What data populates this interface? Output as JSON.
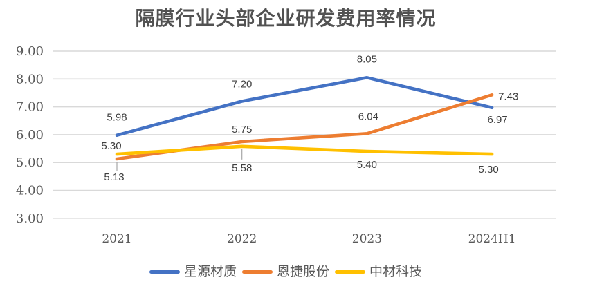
{
  "chart_data": {
    "type": "line",
    "title": "隔膜行业头部企业研发费用率情况",
    "categories": [
      "2021",
      "2022",
      "2023",
      "2024H1"
    ],
    "series": [
      {
        "name": "星源材质",
        "color": "#4472C4",
        "values": [
          5.98,
          7.2,
          8.05,
          6.97
        ],
        "labels": [
          "5.98",
          "7.20",
          "8.05",
          "6.97"
        ]
      },
      {
        "name": "恩捷股份",
        "color": "#ED7D31",
        "values": [
          5.13,
          5.75,
          6.04,
          7.43
        ],
        "labels": [
          "5.13",
          "5.75",
          "6.04",
          "7.43"
        ]
      },
      {
        "name": "中材科技",
        "color": "#FFC000",
        "values": [
          5.3,
          5.58,
          5.4,
          5.3
        ],
        "labels": [
          "5.30",
          "5.58",
          "5.40",
          "5.30"
        ]
      }
    ],
    "yticks": [
      "9.00",
      "8.00",
      "7.00",
      "6.00",
      "5.00",
      "4.00",
      "3.00"
    ],
    "ylim": [
      3,
      9
    ],
    "xlabel": "",
    "ylabel": "",
    "grid": true,
    "data_labels": true,
    "legend_position": "bottom",
    "gridline_color": "#d9d9d9",
    "tick_color": "#595959",
    "data_label_color": "#3f3f3f",
    "title_color": "#525252"
  }
}
